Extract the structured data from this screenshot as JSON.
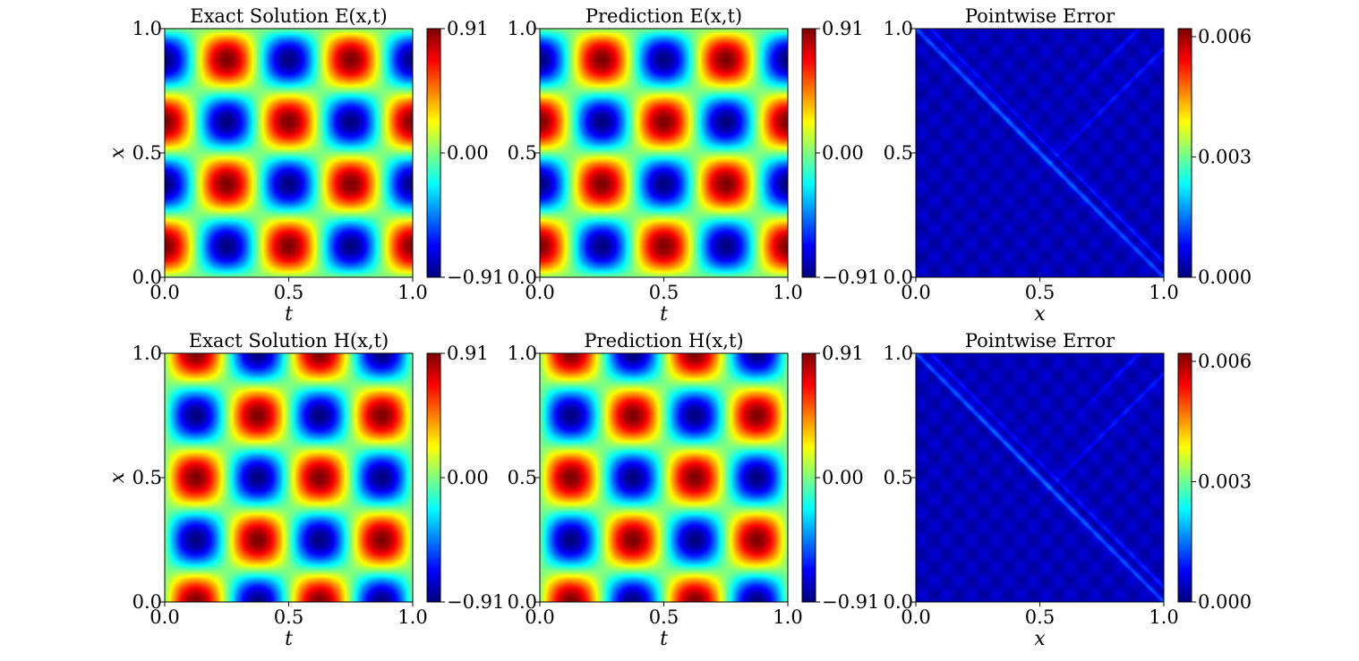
{
  "chart_data": [
    {
      "type": "heatmap",
      "title": "Exact Solution E(x,t)",
      "field": "E",
      "xlabel": "t",
      "ylabel": "x",
      "xlim": [
        0.0,
        1.0
      ],
      "ylim": [
        0.0,
        1.0
      ],
      "xticks": [
        "0.0",
        "0.5",
        "1.0"
      ],
      "yticks": [
        "0.0",
        "0.5",
        "1.0"
      ],
      "colormap": "jet",
      "colorbar": {
        "min": -0.91,
        "max": 0.91,
        "ticks": [
          "−0.91",
          "0.00",
          "0.91"
        ]
      },
      "grid": false
    },
    {
      "type": "heatmap",
      "title": "Prediction E(x,t)",
      "field": "E",
      "xlabel": "t",
      "ylabel": "",
      "xlim": [
        0.0,
        1.0
      ],
      "ylim": [
        0.0,
        1.0
      ],
      "xticks": [
        "0.0",
        "0.5",
        "1.0"
      ],
      "yticks": [
        "0.0",
        "0.5",
        "1.0"
      ],
      "colormap": "jet",
      "colorbar": {
        "min": -0.91,
        "max": 0.91,
        "ticks": [
          "−0.91",
          "0.00",
          "0.91"
        ]
      },
      "grid": false
    },
    {
      "type": "heatmap",
      "title": "Pointwise Error",
      "field": "error",
      "xlabel": "x",
      "ylabel": "",
      "xlim": [
        0.0,
        1.0
      ],
      "ylim": [
        0.0,
        1.0
      ],
      "xticks": [
        "0.0",
        "0.5",
        "1.0"
      ],
      "yticks": [
        "0.0",
        "0.5",
        "1.0"
      ],
      "colormap": "jet",
      "colorbar": {
        "min": 0.0,
        "max": 0.0062,
        "ticks": [
          "0.000",
          "0.003",
          "0.006"
        ]
      },
      "grid": false
    },
    {
      "type": "heatmap",
      "title": "Exact Solution H(x,t)",
      "field": "H",
      "xlabel": "t",
      "ylabel": "x",
      "xlim": [
        0.0,
        1.0
      ],
      "ylim": [
        0.0,
        1.0
      ],
      "xticks": [
        "0.0",
        "0.5",
        "1.0"
      ],
      "yticks": [
        "0.0",
        "0.5",
        "1.0"
      ],
      "colormap": "jet",
      "colorbar": {
        "min": -0.91,
        "max": 0.91,
        "ticks": [
          "−0.91",
          "0.00",
          "0.91"
        ]
      },
      "grid": false
    },
    {
      "type": "heatmap",
      "title": "Prediction H(x,t)",
      "field": "H",
      "xlabel": "t",
      "ylabel": "",
      "xlim": [
        0.0,
        1.0
      ],
      "ylim": [
        0.0,
        1.0
      ],
      "xticks": [
        "0.0",
        "0.5",
        "1.0"
      ],
      "yticks": [
        "0.0",
        "0.5",
        "1.0"
      ],
      "colormap": "jet",
      "colorbar": {
        "min": -0.91,
        "max": 0.91,
        "ticks": [
          "−0.91",
          "0.00",
          "0.91"
        ]
      },
      "grid": false
    },
    {
      "type": "heatmap",
      "title": "Pointwise Error",
      "field": "error",
      "xlabel": "x",
      "ylabel": "",
      "xlim": [
        0.0,
        1.0
      ],
      "ylim": [
        0.0,
        1.0
      ],
      "xticks": [
        "0.0",
        "0.5",
        "1.0"
      ],
      "yticks": [
        "0.0",
        "0.5",
        "1.0"
      ],
      "colormap": "jet",
      "colorbar": {
        "min": 0.0,
        "max": 0.0062,
        "ticks": [
          "0.000",
          "0.003",
          "0.006"
        ]
      },
      "grid": false
    }
  ]
}
